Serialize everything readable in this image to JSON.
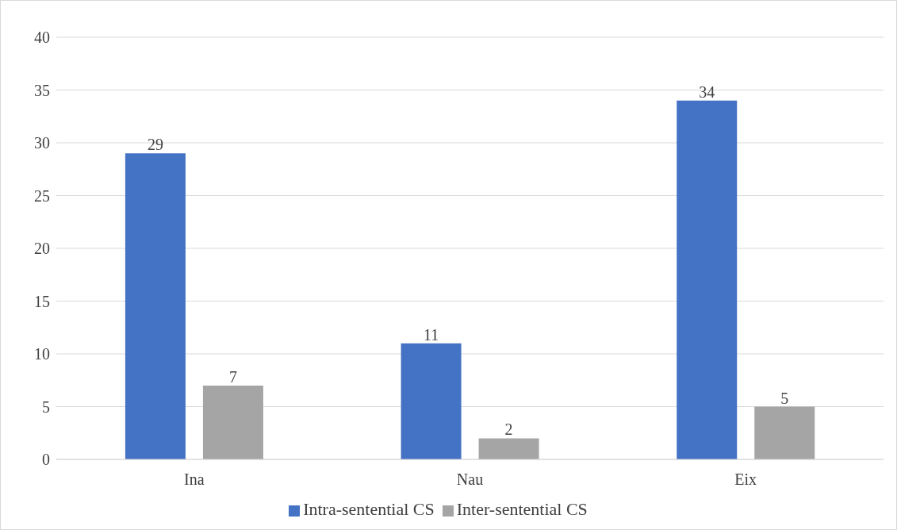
{
  "chart_data": {
    "type": "bar",
    "categories": [
      "Ina",
      "Nau",
      "Eix"
    ],
    "series": [
      {
        "name": "Intra-sentential CS",
        "color": "#4472c4",
        "values": [
          29,
          11,
          34
        ]
      },
      {
        "name": "Inter-sentential CS",
        "color": "#a5a5a5",
        "values": [
          7,
          2,
          5
        ]
      }
    ],
    "ylim": [
      0,
      40
    ],
    "yticks": [
      0,
      5,
      10,
      15,
      20,
      25,
      30,
      35,
      40
    ],
    "grid": "y",
    "legend": "bottom",
    "data_labels": true
  }
}
